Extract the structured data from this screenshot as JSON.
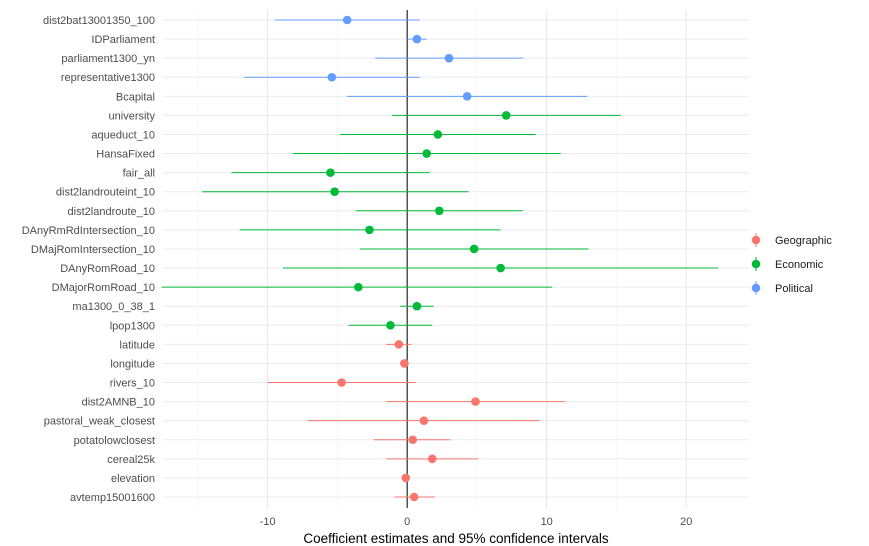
{
  "chart_data": {
    "type": "scatter",
    "subtype": "coefficient-plot",
    "title": "",
    "xlabel": "Coefficient estimates and 95% confidence intervals",
    "ylabel": "",
    "xlim": [
      -17.5,
      24.5
    ],
    "x_ticks": [
      -10,
      0,
      10,
      20
    ],
    "x_tick_labels": [
      "-10",
      "0",
      "10",
      "20"
    ],
    "reference_line": 0,
    "grid": true,
    "legend_position": "right",
    "series": [
      {
        "name": "Geographic",
        "color": "#F8766D"
      },
      {
        "name": "Economic",
        "color": "#00BA38"
      },
      {
        "name": "Political",
        "color": "#619CFF"
      }
    ],
    "points": [
      {
        "label": "dist2bat13001350_100",
        "group": "Political",
        "estimate": -4.3,
        "low": -9.5,
        "high": 0.9
      },
      {
        "label": "IDParliament",
        "group": "Political",
        "estimate": 0.7,
        "low": 0.0,
        "high": 1.4
      },
      {
        "label": "parliament1300_yn",
        "group": "Political",
        "estimate": 3.0,
        "low": -2.3,
        "high": 8.3
      },
      {
        "label": "representative1300",
        "group": "Political",
        "estimate": -5.4,
        "low": -11.7,
        "high": 0.9
      },
      {
        "label": "Bcapital",
        "group": "Political",
        "estimate": 4.3,
        "low": -4.3,
        "high": 12.9
      },
      {
        "label": "university",
        "group": "Economic",
        "estimate": 7.1,
        "low": -1.1,
        "high": 15.3
      },
      {
        "label": "aqueduct_10",
        "group": "Economic",
        "estimate": 2.2,
        "low": -4.8,
        "high": 9.2
      },
      {
        "label": "HansaFixed",
        "group": "Economic",
        "estimate": 1.4,
        "low": -8.2,
        "high": 11.0
      },
      {
        "label": "fair_all",
        "group": "Economic",
        "estimate": -5.5,
        "low": -12.6,
        "high": 1.6
      },
      {
        "label": "dist2landrouteint_10",
        "group": "Economic",
        "estimate": -5.2,
        "low": -14.7,
        "high": 4.4
      },
      {
        "label": "dist2landroute_10",
        "group": "Economic",
        "estimate": 2.3,
        "low": -3.7,
        "high": 8.3
      },
      {
        "label": "DAnyRmRdIntersection_10",
        "group": "Economic",
        "estimate": -2.7,
        "low": -12.0,
        "high": 6.7
      },
      {
        "label": "DMajRomIntersection_10",
        "group": "Economic",
        "estimate": 4.8,
        "low": -3.4,
        "high": 13.0
      },
      {
        "label": "DAnyRomRoad_10",
        "group": "Economic",
        "estimate": 6.7,
        "low": -8.9,
        "high": 22.3
      },
      {
        "label": "DMajorRomRoad_10",
        "group": "Economic",
        "estimate": -3.5,
        "low": -17.6,
        "high": 10.4
      },
      {
        "label": "ma1300_0_38_1",
        "group": "Economic",
        "estimate": 0.7,
        "low": -0.5,
        "high": 1.9
      },
      {
        "label": "lpop1300",
        "group": "Economic",
        "estimate": -1.2,
        "low": -4.2,
        "high": 1.8
      },
      {
        "label": "latitude",
        "group": "Geographic",
        "estimate": -0.6,
        "low": -1.5,
        "high": 0.3
      },
      {
        "label": "longitude",
        "group": "Geographic",
        "estimate": -0.2,
        "low": -0.5,
        "high": 0.1
      },
      {
        "label": "rivers_10",
        "group": "Geographic",
        "estimate": -4.7,
        "low": -10.0,
        "high": 0.6
      },
      {
        "label": "dist2AMNB_10",
        "group": "Geographic",
        "estimate": 4.9,
        "low": -1.5,
        "high": 11.3
      },
      {
        "label": "pastoral_weak_closest",
        "group": "Geographic",
        "estimate": 1.2,
        "low": -7.1,
        "high": 9.5
      },
      {
        "label": "potatolowclosest",
        "group": "Geographic",
        "estimate": 0.4,
        "low": -2.4,
        "high": 3.1
      },
      {
        "label": "cereal25k",
        "group": "Geographic",
        "estimate": 1.8,
        "low": -1.5,
        "high": 5.1
      },
      {
        "label": "elevation",
        "group": "Geographic",
        "estimate": -0.1,
        "low": -0.3,
        "high": 0.1
      },
      {
        "label": "avtemp15001600",
        "group": "Geographic",
        "estimate": 0.5,
        "low": -0.9,
        "high": 2.0
      }
    ]
  }
}
